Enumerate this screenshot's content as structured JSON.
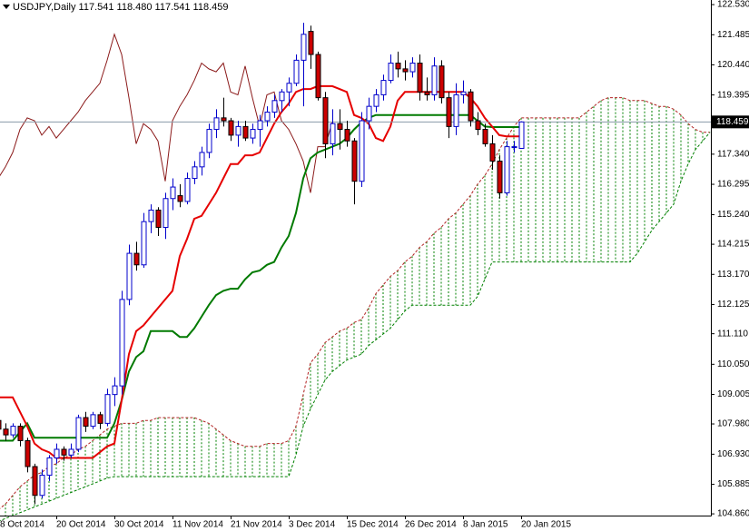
{
  "chart_data": {
    "type": "candlestick",
    "legend_text": "USDJPY,Daily  117.541 118.480 117.541 118.459",
    "categories": [
      "8 Oct 2014",
      null,
      null,
      null,
      null,
      null,
      null,
      null,
      "20 Oct 2014",
      null,
      null,
      null,
      null,
      null,
      null,
      null,
      "30 Oct 2014",
      null,
      null,
      null,
      null,
      null,
      null,
      null,
      "11 Nov 2014",
      null,
      null,
      null,
      null,
      null,
      null,
      null,
      "21 Nov 2014",
      null,
      null,
      null,
      null,
      null,
      null,
      null,
      "3 Dec 2014",
      null,
      null,
      null,
      null,
      null,
      null,
      null,
      "15 Dec 2014",
      null,
      null,
      null,
      null,
      null,
      null,
      null,
      "26 Dec 2014",
      null,
      null,
      null,
      null,
      null,
      null,
      null,
      "8 Jan 2015",
      null,
      null,
      null,
      null,
      null,
      null,
      null,
      "20 Jan 2015"
    ],
    "open": [
      108.1,
      107.8,
      107.6,
      107.9,
      107.4,
      106.5,
      105.5,
      106.2,
      106.8,
      107.1,
      106.9,
      107.1,
      108.2,
      107.9,
      108.3,
      108.0,
      109.0,
      109.3,
      112.3,
      113.9,
      113.5,
      115.0,
      115.4,
      114.8,
      115.8,
      115.9,
      115.7,
      116.5,
      116.9,
      117.4,
      118.2,
      118.6,
      118.5,
      118.0,
      118.3,
      117.9,
      118.2,
      118.5,
      118.8,
      119.2,
      119.5,
      119.8,
      120.6,
      121.6,
      120.8,
      119.3,
      117.7,
      118.4,
      118.2,
      117.8,
      116.4,
      118.5,
      119.0,
      119.4,
      119.9,
      120.5,
      120.3,
      120.2,
      120.5,
      119.5,
      119.4,
      120.4,
      119.3,
      118.3,
      119.4,
      119.5,
      118.5,
      118.2,
      117.7,
      117.1,
      116.0,
      117.6,
      117.541
    ],
    "high": [
      108.4,
      108.0,
      108.0,
      108.0,
      107.5,
      106.6,
      106.4,
      106.9,
      107.3,
      107.2,
      107.3,
      108.3,
      108.4,
      108.4,
      108.4,
      109.2,
      109.6,
      112.6,
      114.2,
      114.3,
      115.3,
      115.6,
      115.5,
      116.0,
      116.5,
      116.3,
      116.7,
      117.1,
      117.6,
      118.4,
      118.9,
      119.3,
      118.6,
      118.5,
      118.5,
      118.4,
      118.7,
      119.0,
      119.4,
      119.6,
      120.0,
      120.8,
      121.9,
      121.8,
      120.9,
      119.5,
      118.9,
      118.9,
      118.5,
      117.9,
      118.8,
      119.3,
      119.6,
      120.1,
      120.8,
      120.9,
      120.6,
      120.7,
      120.8,
      120.0,
      120.7,
      120.6,
      119.5,
      119.8,
      119.9,
      119.6,
      118.8,
      118.4,
      118.0,
      117.3,
      117.8,
      117.8,
      118.48
    ],
    "low": [
      107.6,
      107.4,
      107.5,
      107.2,
      106.3,
      105.2,
      105.4,
      106.0,
      106.6,
      106.7,
      106.8,
      107.0,
      107.7,
      107.8,
      107.8,
      107.9,
      108.6,
      109.0,
      112.1,
      113.3,
      113.4,
      114.6,
      114.5,
      114.4,
      115.4,
      115.5,
      115.6,
      116.3,
      116.6,
      117.2,
      117.9,
      118.3,
      117.8,
      117.6,
      117.8,
      117.7,
      117.6,
      118.3,
      118.6,
      118.8,
      119.0,
      119.7,
      119.0,
      120.3,
      119.2,
      117.2,
      117.3,
      117.5,
      117.6,
      115.6,
      116.2,
      118.2,
      118.8,
      119.2,
      119.8,
      120.0,
      119.9,
      120.0,
      119.2,
      119.2,
      119.2,
      119.1,
      117.9,
      118.0,
      119.1,
      118.3,
      118.0,
      117.6,
      116.8,
      115.8,
      115.9,
      117.4,
      117.541
    ],
    "close": [
      107.8,
      107.6,
      107.9,
      107.4,
      106.5,
      105.5,
      106.2,
      106.8,
      107.1,
      106.9,
      107.1,
      108.2,
      107.9,
      108.3,
      108.0,
      109.0,
      109.3,
      112.3,
      113.9,
      113.5,
      115.0,
      115.4,
      114.8,
      115.8,
      116.2,
      115.7,
      116.5,
      116.9,
      117.4,
      118.2,
      118.6,
      118.5,
      118.0,
      118.3,
      117.9,
      118.2,
      118.5,
      118.8,
      119.2,
      119.5,
      119.8,
      120.6,
      121.5,
      120.8,
      119.3,
      117.7,
      118.4,
      118.2,
      117.8,
      116.4,
      118.5,
      119.0,
      119.4,
      119.9,
      120.5,
      120.3,
      120.2,
      120.5,
      119.5,
      119.4,
      120.4,
      119.3,
      118.3,
      119.4,
      119.5,
      118.5,
      118.2,
      117.7,
      117.1,
      116.0,
      117.6,
      117.6,
      118.459
    ],
    "up_color": "#0000cc",
    "down_color": "#cc0000",
    "tenkan": {
      "color": "#e60000",
      "values": [
        108.9,
        108.9,
        108.9,
        108.4,
        107.9,
        107.3,
        107.1,
        107.0,
        106.8,
        106.8,
        106.8,
        106.8,
        106.8,
        106.8,
        107.0,
        107.2,
        107.3,
        108.8,
        110.4,
        111.2,
        111.4,
        111.7,
        112.0,
        112.3,
        112.6,
        113.8,
        114.4,
        115.1,
        115.2,
        115.6,
        116.0,
        116.5,
        117.0,
        117.0,
        117.3,
        117.3,
        117.4,
        117.9,
        118.4,
        118.8,
        119.1,
        119.5,
        119.6,
        119.6,
        119.7,
        119.7,
        119.7,
        119.6,
        119.5,
        118.7,
        118.6,
        118.4,
        117.9,
        117.8,
        118.3,
        119.2,
        119.5,
        119.5,
        119.5,
        119.5,
        119.5,
        119.5,
        119.5,
        119.5,
        119.5,
        119.3,
        119.0,
        118.6,
        118.3,
        118.0,
        117.96,
        117.96,
        117.96
      ]
    },
    "kijun": {
      "color": "#007a00",
      "values": [
        107.4,
        107.4,
        107.4,
        107.7,
        108.0,
        107.5,
        107.5,
        107.5,
        107.5,
        107.5,
        107.5,
        107.5,
        107.5,
        107.5,
        107.5,
        107.5,
        108.0,
        108.8,
        109.8,
        110.3,
        110.5,
        111.2,
        111.2,
        111.2,
        111.2,
        111.0,
        111.0,
        111.3,
        111.7,
        112.1,
        112.45,
        112.6,
        112.67,
        112.67,
        113.0,
        113.24,
        113.3,
        113.5,
        113.6,
        114.1,
        114.5,
        115.3,
        116.5,
        117.2,
        117.4,
        117.5,
        117.6,
        117.7,
        117.9,
        118.2,
        118.44,
        118.6,
        118.7,
        118.7,
        118.7,
        118.7,
        118.7,
        118.7,
        118.7,
        118.7,
        118.7,
        118.7,
        118.7,
        118.7,
        118.7,
        118.7,
        118.5,
        118.3,
        118.28,
        118.28,
        118.28,
        118.28,
        118.28
      ]
    },
    "chikou_color": "#8b1a1a",
    "senkou_a": {
      "color": "#b22222",
      "values": [
        105.0,
        105.2,
        105.5,
        105.8,
        106.0,
        106.2,
        106.3,
        106.5,
        106.6,
        106.8,
        106.9,
        107.1,
        107.2,
        107.4,
        107.6,
        107.8,
        107.9,
        108.0,
        108.0,
        108.0,
        108.1,
        108.1,
        108.2,
        108.2,
        108.2,
        108.2,
        108.2,
        108.2,
        108.1,
        108.0,
        107.8,
        107.6,
        107.4,
        107.3,
        107.2,
        107.2,
        107.2,
        107.3,
        107.3,
        107.3,
        107.4,
        107.9,
        109.0,
        110.1,
        110.4,
        110.8,
        111.0,
        111.2,
        111.3,
        111.5,
        111.6,
        112.0,
        112.5,
        112.8,
        113.1,
        113.3,
        113.6,
        113.8,
        114.1,
        114.3,
        114.6,
        114.8,
        115.1,
        115.3,
        115.6,
        115.9,
        116.3,
        116.6,
        117.0,
        117.5,
        117.9,
        118.3,
        118.6,
        118.6,
        118.6,
        118.6,
        118.6,
        118.6,
        118.6,
        118.6,
        118.6,
        118.8,
        119.0,
        119.2,
        119.3,
        119.3,
        119.3,
        119.2,
        119.2,
        119.2,
        119.1,
        119.0,
        119.0,
        118.9,
        118.7,
        118.4,
        118.2,
        118.1,
        118.1
      ]
    },
    "senkou_b": {
      "color": "#008000",
      "values": [
        104.6,
        104.7,
        104.8,
        104.9,
        105.0,
        105.1,
        105.2,
        105.3,
        105.4,
        105.5,
        105.6,
        105.7,
        105.8,
        105.9,
        106.0,
        106.1,
        106.15,
        106.15,
        106.15,
        106.15,
        106.15,
        106.15,
        106.15,
        106.15,
        106.15,
        106.15,
        106.15,
        106.15,
        106.15,
        106.15,
        106.15,
        106.15,
        106.15,
        106.15,
        106.15,
        106.15,
        106.15,
        106.15,
        106.15,
        106.15,
        106.15,
        106.9,
        107.9,
        108.5,
        109.0,
        109.5,
        109.8,
        110.0,
        110.2,
        110.3,
        110.4,
        110.7,
        110.9,
        111.1,
        111.3,
        111.6,
        111.9,
        112.1,
        112.1,
        112.1,
        112.1,
        112.1,
        112.1,
        112.1,
        112.1,
        112.1,
        112.4,
        113.0,
        113.6,
        113.6,
        113.6,
        113.6,
        113.6,
        113.6,
        113.6,
        113.6,
        113.6,
        113.6,
        113.6,
        113.6,
        113.6,
        113.6,
        113.6,
        113.6,
        113.6,
        113.6,
        113.6,
        113.6,
        113.9,
        114.3,
        114.7,
        115.0,
        115.3,
        115.6,
        116.4,
        117.0,
        117.5,
        117.8,
        118.1
      ]
    },
    "cloud_color": "#008000",
    "last_price": 118.459,
    "ylim": [
      104.8,
      122.69
    ],
    "yticks": [
      {
        "value": 122.53,
        "label": "122.530"
      },
      121.485,
      {
        "value": 120.44,
        "label": "120.440"
      },
      119.395,
      {
        "value": 117.34,
        "label": "117.340"
      },
      116.295,
      {
        "value": 115.24,
        "label": "115.240"
      },
      114.215,
      {
        "value": 113.17,
        "label": "113.170"
      },
      112.125,
      {
        "value": 111.11,
        "label": "111.110"
      },
      {
        "value": 110.05,
        "label": "110.050"
      },
      109.005,
      {
        "value": 107.98,
        "label": "107.980"
      },
      {
        "value": 106.93,
        "label": "106.930"
      },
      105.885,
      {
        "value": 104.86,
        "label": "104.860"
      }
    ]
  }
}
